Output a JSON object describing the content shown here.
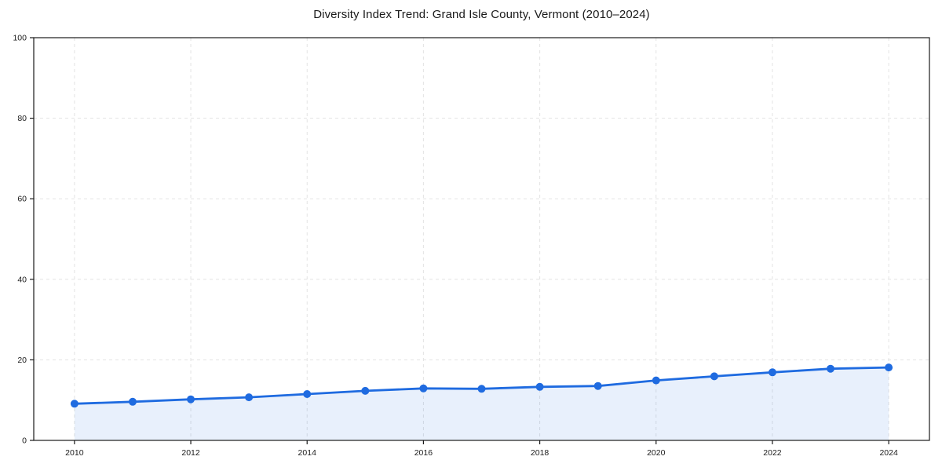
{
  "chart_data": {
    "type": "line",
    "title": "Diversity Index Trend: Grand Isle County, Vermont (2010–2024)",
    "x": [
      2010,
      2011,
      2012,
      2013,
      2014,
      2015,
      2016,
      2017,
      2018,
      2019,
      2020,
      2021,
      2022,
      2023,
      2024
    ],
    "series": [
      {
        "name": "Diversity Index",
        "values": [
          9.1,
          9.6,
          10.2,
          10.7,
          11.5,
          12.3,
          12.9,
          12.8,
          13.3,
          13.5,
          14.9,
          15.9,
          16.9,
          17.8,
          18.1
        ]
      }
    ],
    "xlabel": "",
    "ylabel": "",
    "xlim": [
      2009.3,
      2024.7
    ],
    "ylim": [
      0,
      100
    ],
    "x_ticks": [
      2010,
      2012,
      2014,
      2016,
      2018,
      2020,
      2022,
      2024
    ],
    "y_ticks": [
      0,
      20,
      40,
      60,
      80,
      100
    ],
    "grid": true,
    "grid_style": "dashed",
    "legend": false,
    "area_fill": true,
    "marker": "circle",
    "colors": {
      "line": "#1f6be0",
      "marker": "#1f6be0",
      "area_rgba": "rgba(31, 107, 224, 0.10)",
      "grid": "#e3e3e3",
      "axis": "#1a1a1a",
      "text": "#1a1a1a",
      "background": "#ffffff"
    }
  }
}
